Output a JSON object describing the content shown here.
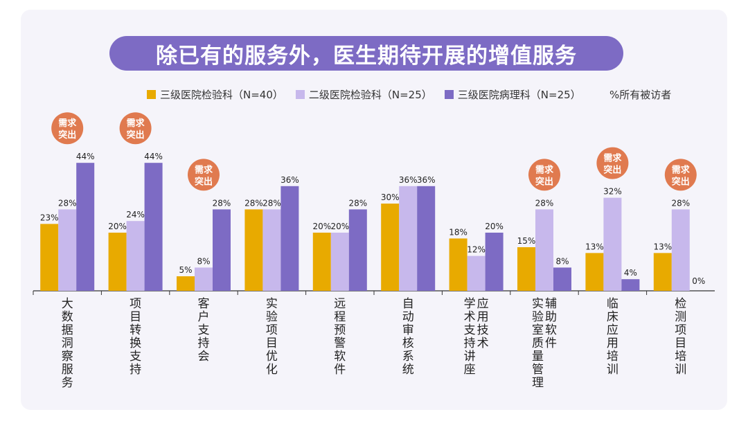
{
  "title": "除已有的服务外，医生期待开展的增值服务",
  "note": "%所有被访者",
  "chart_data": {
    "type": "bar",
    "unit": "%",
    "categories": [
      [
        "大",
        "数",
        "据",
        "洞",
        "察",
        "服",
        "务"
      ],
      [
        "项",
        "目",
        "转",
        "换",
        "支",
        "持"
      ],
      [
        "客",
        "户",
        "支",
        "持",
        "会"
      ],
      [
        "实",
        "验",
        "项",
        "目",
        "优",
        "化"
      ],
      [
        "远",
        "程",
        "预",
        "警",
        "软",
        "件"
      ],
      [
        "自",
        "动",
        "审",
        "核",
        "系",
        "统"
      ],
      [
        "学",
        "术",
        "支",
        "持",
        "讲",
        "座",
        "|",
        "应",
        "用",
        "技",
        "术"
      ],
      [
        "实",
        "验",
        "室",
        "质",
        "量",
        "管",
        "理",
        "|",
        "辅",
        "助",
        "软",
        "件"
      ],
      [
        "临",
        "床",
        "应",
        "用",
        "培",
        "训"
      ],
      [
        "检",
        "测",
        "项",
        "目",
        "培",
        "训"
      ]
    ],
    "series": [
      {
        "name": "三级医院检验科（N=40）",
        "color": "#e8aa00",
        "values": [
          23,
          20,
          5,
          28,
          20,
          30,
          18,
          15,
          13,
          13
        ]
      },
      {
        "name": "二级医院检验科（N=25）",
        "color": "#c7b8ec",
        "values": [
          28,
          24,
          8,
          28,
          20,
          36,
          12,
          28,
          32,
          28
        ]
      },
      {
        "name": "三级医院病理科（N=25）",
        "color": "#7d6bc4",
        "values": [
          44,
          44,
          28,
          36,
          28,
          36,
          20,
          8,
          4,
          0
        ]
      }
    ],
    "badges": [
      {
        "category_index": 0,
        "text": [
          "需求",
          "突出"
        ]
      },
      {
        "category_index": 1,
        "text": [
          "需求",
          "突出"
        ]
      },
      {
        "category_index": 2,
        "text": [
          "需求",
          "突出"
        ]
      },
      {
        "category_index": 7,
        "text": [
          "需求",
          "突出"
        ]
      },
      {
        "category_index": 8,
        "text": [
          "需求",
          "突出"
        ]
      },
      {
        "category_index": 9,
        "text": [
          "需求",
          "突出"
        ]
      }
    ],
    "badge_color": "#e07a4f"
  }
}
